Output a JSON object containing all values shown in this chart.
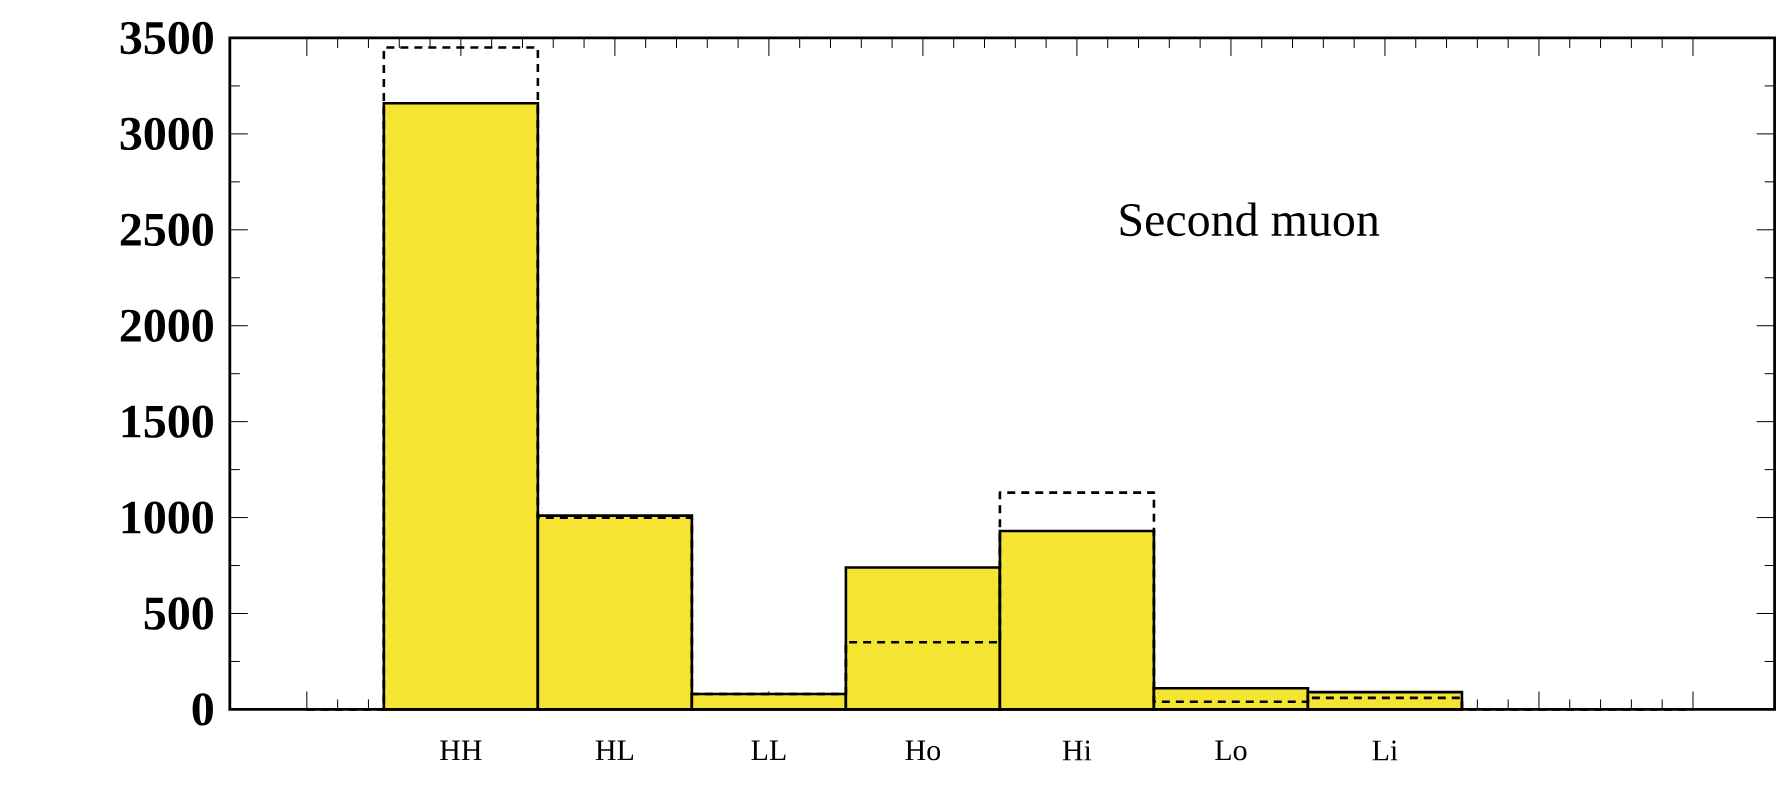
{
  "chart_data": {
    "type": "bar",
    "categories": [
      null,
      "HH",
      "HL",
      "LL",
      "Ho",
      "Hi",
      "Lo",
      "Li",
      null,
      null
    ],
    "series": [
      {
        "color": "#f5e532",
        "values": [
          null,
          3160,
          1010,
          80,
          740,
          930,
          110,
          90,
          null,
          null
        ]
      },
      {
        "type": "step",
        "color": "#000000",
        "line_style": "dashed",
        "values": [
          0,
          3450,
          1000,
          80,
          350,
          1130,
          40,
          60,
          0,
          0
        ]
      }
    ],
    "ylim": [
      0,
      3500
    ],
    "yticks": [
      0,
      500,
      1000,
      1500,
      2000,
      2500,
      3000,
      3500
    ],
    "annotations": [
      "Second muon"
    ]
  }
}
